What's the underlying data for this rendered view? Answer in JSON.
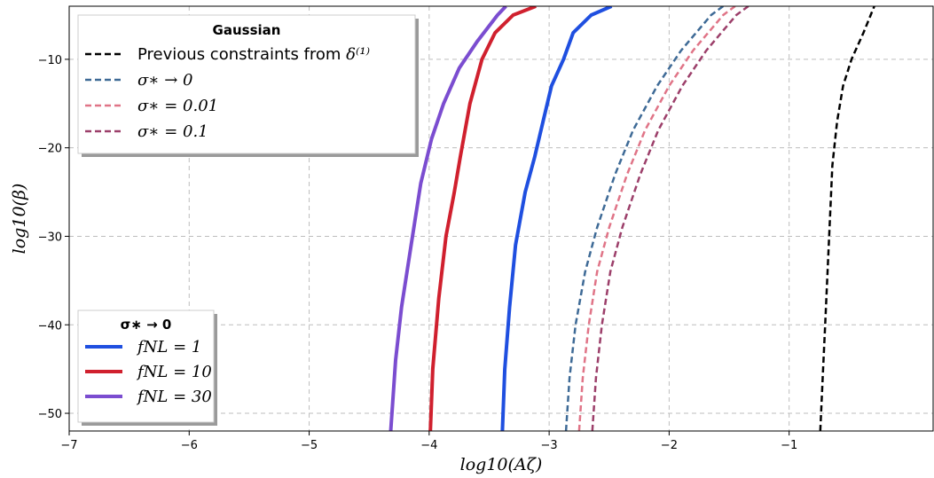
{
  "chart_data": {
    "type": "line",
    "xlabel": "log10(Aζ)",
    "ylabel": "log10(β)",
    "xlim": [
      -7,
      0.2
    ],
    "ylim": [
      -52,
      -4
    ],
    "x_ticks": [
      -7,
      -6,
      -5,
      -4,
      -3,
      -2,
      -1
    ],
    "y_ticks": [
      -50,
      -40,
      -30,
      -20,
      -10
    ],
    "grid": true,
    "legends": [
      {
        "title": "Gaussian",
        "placement": "top-left",
        "entries": [
          {
            "series": "previous",
            "label_text": "Previous constraints from ",
            "label_math": "δ⁽¹⁾"
          },
          {
            "series": "g0",
            "label_text": "",
            "label_math": "σ∗ → 0"
          },
          {
            "series": "g001",
            "label_text": "",
            "label_math": "σ∗ = 0.01"
          },
          {
            "series": "g01",
            "label_text": "",
            "label_math": "σ∗ = 0.1"
          }
        ]
      },
      {
        "title": "σ∗ → 0",
        "placement": "bottom-left",
        "entries": [
          {
            "series": "f1",
            "label_text": "",
            "label_math": "fNL = 1"
          },
          {
            "series": "f10",
            "label_text": "",
            "label_math": "fNL = 10"
          },
          {
            "series": "f30",
            "label_text": "",
            "label_math": "fNL = 30"
          }
        ]
      }
    ],
    "series": [
      {
        "id": "previous",
        "color": "#000000",
        "style": "dashed",
        "width": 2.5,
        "points": [
          [
            -0.74,
            -52
          ],
          [
            -0.72,
            -46
          ],
          [
            -0.7,
            -40
          ],
          [
            -0.68,
            -34
          ],
          [
            -0.66,
            -28
          ],
          [
            -0.64,
            -22
          ],
          [
            -0.6,
            -17
          ],
          [
            -0.55,
            -13
          ],
          [
            -0.48,
            -10
          ],
          [
            -0.38,
            -7
          ],
          [
            -0.29,
            -4
          ]
        ]
      },
      {
        "id": "g0",
        "color": "#3e6a96",
        "style": "dashed",
        "width": 2.5,
        "points": [
          [
            -2.86,
            -52
          ],
          [
            -2.83,
            -46
          ],
          [
            -2.78,
            -40
          ],
          [
            -2.7,
            -34
          ],
          [
            -2.6,
            -29
          ],
          [
            -2.45,
            -23
          ],
          [
            -2.3,
            -18
          ],
          [
            -2.1,
            -13
          ],
          [
            -1.9,
            -9
          ],
          [
            -1.65,
            -5
          ],
          [
            -1.55,
            -4
          ]
        ]
      },
      {
        "id": "g001",
        "color": "#e07487",
        "style": "dashed",
        "width": 2.5,
        "points": [
          [
            -2.75,
            -52
          ],
          [
            -2.72,
            -46
          ],
          [
            -2.67,
            -40
          ],
          [
            -2.6,
            -34
          ],
          [
            -2.5,
            -29
          ],
          [
            -2.35,
            -23
          ],
          [
            -2.2,
            -18
          ],
          [
            -2.0,
            -13
          ],
          [
            -1.8,
            -9
          ],
          [
            -1.55,
            -5
          ],
          [
            -1.45,
            -4
          ]
        ]
      },
      {
        "id": "g01",
        "color": "#9c3f6a",
        "style": "dashed",
        "width": 2.5,
        "points": [
          [
            -2.64,
            -52
          ],
          [
            -2.61,
            -46
          ],
          [
            -2.56,
            -40
          ],
          [
            -2.49,
            -34
          ],
          [
            -2.39,
            -29
          ],
          [
            -2.24,
            -23
          ],
          [
            -2.09,
            -18
          ],
          [
            -1.89,
            -13
          ],
          [
            -1.69,
            -9
          ],
          [
            -1.44,
            -5
          ],
          [
            -1.34,
            -4
          ]
        ]
      },
      {
        "id": "f1",
        "color": "#1f4fe0",
        "style": "solid",
        "width": 4,
        "points": [
          [
            -3.39,
            -52
          ],
          [
            -3.37,
            -45
          ],
          [
            -3.33,
            -38
          ],
          [
            -3.28,
            -31
          ],
          [
            -3.2,
            -25
          ],
          [
            -3.12,
            -21
          ],
          [
            -3.05,
            -17
          ],
          [
            -2.98,
            -13
          ],
          [
            -2.88,
            -10
          ],
          [
            -2.8,
            -7
          ],
          [
            -2.65,
            -5
          ],
          [
            -2.48,
            -4
          ]
        ]
      },
      {
        "id": "f10",
        "color": "#d0202e",
        "style": "solid",
        "width": 4,
        "points": [
          [
            -3.99,
            -52
          ],
          [
            -3.97,
            -45
          ],
          [
            -3.92,
            -37
          ],
          [
            -3.86,
            -30
          ],
          [
            -3.79,
            -25
          ],
          [
            -3.74,
            -21
          ],
          [
            -3.66,
            -15
          ],
          [
            -3.56,
            -10
          ],
          [
            -3.45,
            -7
          ],
          [
            -3.3,
            -5
          ],
          [
            -3.11,
            -4
          ]
        ]
      },
      {
        "id": "f30",
        "color": "#7b4dd0",
        "style": "solid",
        "width": 4,
        "points": [
          [
            -4.32,
            -52
          ],
          [
            -4.28,
            -44
          ],
          [
            -4.23,
            -38
          ],
          [
            -4.15,
            -31
          ],
          [
            -4.07,
            -24
          ],
          [
            -3.98,
            -19
          ],
          [
            -3.88,
            -15
          ],
          [
            -3.75,
            -11
          ],
          [
            -3.6,
            -8
          ],
          [
            -3.43,
            -5
          ],
          [
            -3.36,
            -4
          ]
        ]
      }
    ]
  }
}
